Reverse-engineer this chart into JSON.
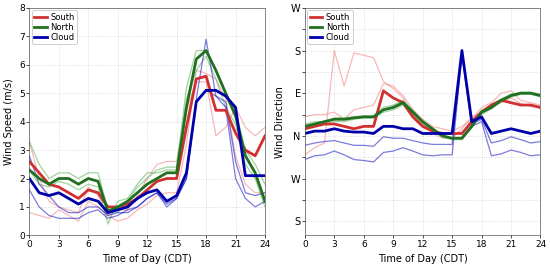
{
  "hours": [
    0,
    1,
    2,
    3,
    4,
    5,
    6,
    7,
    8,
    9,
    10,
    11,
    12,
    13,
    14,
    15,
    16,
    17,
    18,
    19,
    20,
    21,
    22,
    23,
    24
  ],
  "speed_south_mean": [
    2.6,
    2.2,
    1.8,
    1.7,
    1.5,
    1.3,
    1.6,
    1.5,
    1.0,
    1.0,
    1.1,
    1.3,
    1.6,
    1.9,
    2.0,
    2.0,
    3.8,
    5.5,
    5.6,
    4.4,
    4.4,
    3.6,
    3.0,
    2.8,
    3.5
  ],
  "speed_south_thin1": [
    3.3,
    2.0,
    1.2,
    1.0,
    0.9,
    0.8,
    1.7,
    1.4,
    0.7,
    0.5,
    0.6,
    0.9,
    1.1,
    1.4,
    1.5,
    1.5,
    3.2,
    5.8,
    5.7,
    5.5,
    4.8,
    2.8,
    1.8,
    1.5,
    1.5
  ],
  "speed_south_thin2": [
    0.8,
    0.7,
    0.6,
    0.9,
    0.7,
    0.5,
    1.2,
    1.0,
    0.7,
    0.9,
    0.9,
    1.4,
    2.0,
    2.5,
    2.6,
    2.6,
    4.4,
    5.4,
    5.4,
    3.5,
    3.8,
    4.5,
    3.8,
    3.5,
    3.8
  ],
  "speed_north_mean": [
    2.3,
    2.0,
    1.8,
    2.0,
    2.0,
    1.8,
    2.0,
    1.9,
    0.85,
    1.0,
    1.2,
    1.5,
    1.8,
    2.0,
    2.2,
    2.2,
    4.5,
    6.2,
    6.5,
    5.8,
    5.0,
    4.2,
    2.8,
    2.2,
    1.2
  ],
  "speed_north_thin1": [
    3.3,
    2.5,
    2.0,
    2.2,
    2.2,
    2.0,
    2.2,
    2.2,
    0.9,
    0.8,
    1.2,
    1.7,
    2.0,
    2.3,
    2.4,
    2.4,
    5.2,
    6.5,
    6.5,
    5.8,
    5.0,
    4.4,
    3.0,
    2.5,
    1.8
  ],
  "speed_north_thin2": [
    2.3,
    1.8,
    1.7,
    1.9,
    1.8,
    1.6,
    1.8,
    1.7,
    0.4,
    1.2,
    1.3,
    1.8,
    2.2,
    2.2,
    2.3,
    2.3,
    4.8,
    5.8,
    6.3,
    5.5,
    4.5,
    3.9,
    2.5,
    2.0,
    1.0
  ],
  "speed_cloud_mean": [
    2.0,
    1.5,
    1.4,
    1.5,
    1.3,
    1.1,
    1.3,
    1.2,
    0.8,
    0.9,
    1.0,
    1.3,
    1.5,
    1.6,
    1.2,
    1.4,
    2.2,
    4.7,
    5.1,
    5.1,
    4.9,
    4.5,
    2.1,
    2.1,
    2.1
  ],
  "speed_cloud_thin1": [
    2.8,
    1.8,
    1.4,
    1.0,
    0.8,
    0.8,
    1.0,
    1.0,
    0.7,
    0.8,
    0.8,
    1.0,
    1.3,
    1.5,
    1.0,
    1.3,
    2.0,
    4.8,
    6.9,
    4.9,
    4.7,
    2.6,
    1.5,
    1.4,
    1.5
  ],
  "speed_cloud_thin2": [
    1.6,
    1.0,
    0.7,
    0.6,
    0.6,
    0.6,
    0.8,
    0.9,
    0.6,
    0.7,
    0.9,
    1.0,
    1.3,
    1.5,
    1.1,
    1.3,
    2.0,
    4.7,
    5.1,
    4.9,
    4.5,
    2.0,
    1.3,
    1.0,
    1.2
  ],
  "dir_south_mean": [
    195,
    200,
    205,
    205,
    200,
    195,
    200,
    200,
    275,
    260,
    250,
    220,
    200,
    190,
    185,
    185,
    185,
    210,
    230,
    245,
    255,
    250,
    245,
    245,
    240
  ],
  "dir_south_thin1": [
    220,
    225,
    225,
    230,
    215,
    235,
    240,
    245,
    290,
    285,
    265,
    235,
    215,
    200,
    195,
    190,
    200,
    215,
    240,
    250,
    270,
    275,
    255,
    250,
    245
  ],
  "dir_south_thin2": [
    140,
    155,
    165,
    360,
    285,
    355,
    350,
    345,
    295,
    280,
    260,
    225,
    205,
    185,
    175,
    175,
    195,
    220,
    230,
    240,
    250,
    260,
    248,
    242,
    238
  ],
  "dir_north_mean": [
    200,
    205,
    210,
    215,
    215,
    218,
    220,
    220,
    235,
    240,
    250,
    230,
    210,
    195,
    180,
    175,
    175,
    200,
    230,
    240,
    255,
    265,
    270,
    270,
    265
  ],
  "dir_north_thin1": [
    205,
    210,
    210,
    218,
    218,
    220,
    222,
    222,
    240,
    245,
    255,
    235,
    210,
    195,
    180,
    175,
    177,
    205,
    235,
    243,
    258,
    268,
    272,
    272,
    268
  ],
  "dir_north_thin2": [
    195,
    200,
    205,
    210,
    210,
    215,
    218,
    218,
    230,
    235,
    245,
    225,
    205,
    190,
    178,
    172,
    172,
    198,
    225,
    237,
    252,
    262,
    268,
    268,
    262
  ],
  "dir_cloud_mean": [
    185,
    190,
    190,
    195,
    190,
    188,
    188,
    185,
    200,
    200,
    195,
    195,
    185,
    185,
    185,
    185,
    360,
    210,
    220,
    185,
    190,
    195,
    190,
    185,
    190
  ],
  "dir_cloud_thin1": [
    160,
    165,
    168,
    170,
    165,
    160,
    160,
    158,
    178,
    175,
    175,
    170,
    165,
    162,
    162,
    162,
    355,
    205,
    215,
    165,
    170,
    178,
    172,
    165,
    168
  ],
  "dir_cloud_thin2": [
    130,
    138,
    140,
    148,
    140,
    130,
    128,
    125,
    145,
    148,
    155,
    148,
    140,
    138,
    140,
    140,
    350,
    200,
    210,
    138,
    142,
    150,
    145,
    138,
    140
  ],
  "speed_ylim": [
    0,
    8
  ],
  "speed_yticks": [
    0,
    1,
    2,
    3,
    4,
    5,
    6,
    7,
    8
  ],
  "xticks": [
    0,
    3,
    6,
    9,
    12,
    15,
    18,
    21,
    24
  ],
  "south_color": "#F28080",
  "north_color": "#50B050",
  "cloud_color": "#1010C0",
  "south_mean_color": "#D03030",
  "north_mean_color": "#207020",
  "cloud_mean_color": "#0000AA",
  "thin_alpha": 0.55,
  "mean_lw": 2.0,
  "thin_lw": 0.9,
  "dir_yticks_labels": [
    "S",
    "",
    "W",
    "",
    "N",
    "",
    "E",
    "",
    "S",
    "",
    "W"
  ],
  "dir_yticks_vals": [
    0,
    45,
    90,
    135,
    180,
    225,
    270,
    315,
    360,
    405,
    450
  ],
  "dir_ylim": [
    -30,
    450
  ],
  "background_color": "#ffffff",
  "grid_color": "#999999",
  "grid_alpha": 0.5,
  "grid_style": ":"
}
